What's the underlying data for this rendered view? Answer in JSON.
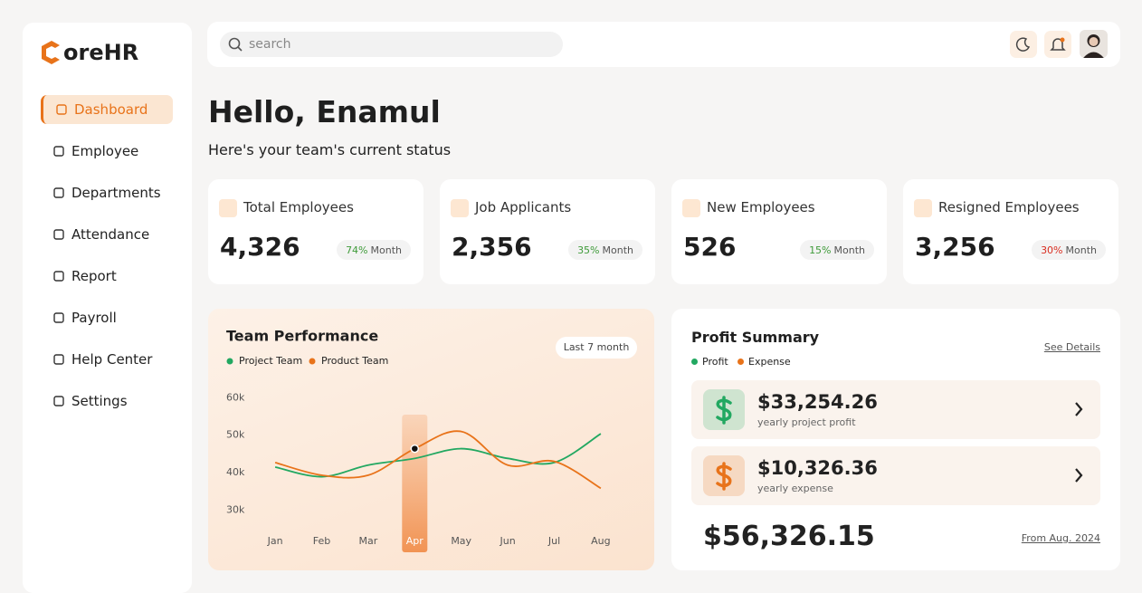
{
  "brand": "oreHR",
  "nav": [
    "Dashboard",
    "Employee",
    "Departments",
    "Attendance",
    "Report",
    "Payroll",
    "Help Center",
    "Settings"
  ],
  "search_placeholder": "search",
  "greeting": "Hello, Enamul",
  "subtitle": "Here's your team's current status",
  "stats": [
    {
      "label": "Total Employees",
      "value": "4,326",
      "change": "74%",
      "period": "Month",
      "color": "#3f9b3a"
    },
    {
      "label": "Job Applicants",
      "value": "2,356",
      "change": "35%",
      "period": "Month",
      "color": "#3f9b3a"
    },
    {
      "label": "New  Employees",
      "value": "526",
      "change": "15%",
      "period": "Month",
      "color": "#3f9b3a"
    },
    {
      "label": "Resigned Employees",
      "value": "3,256",
      "change": "30%",
      "period": "Month",
      "color": "#d92d20"
    }
  ],
  "chart_data": {
    "type": "line",
    "title": "Team Performance",
    "range_button": "Last 7 month",
    "categories": [
      "Jan",
      "Feb",
      "Mar",
      "Apr",
      "May",
      "Jun",
      "Jul",
      "Aug"
    ],
    "series": [
      {
        "name": "Project Team",
        "color": "#22a861",
        "values": [
          41500,
          38900,
          42000,
          43800,
          46400,
          43800,
          42700,
          50400
        ]
      },
      {
        "name": "Product Team",
        "color": "#e8731a",
        "values": [
          42700,
          39300,
          39300,
          46400,
          51000,
          42000,
          43000,
          35800
        ]
      }
    ],
    "ylim": [
      25000,
      63000
    ],
    "yticks": [
      {
        "value": 30000,
        "label": "30k"
      },
      {
        "value": 40000,
        "label": "40k"
      },
      {
        "value": 50000,
        "label": "50k"
      },
      {
        "value": 60000,
        "label": "60k"
      }
    ],
    "highlight": 3
  },
  "profit_summary": {
    "title": "Profit Summary",
    "link": "See Details",
    "legend": [
      {
        "name": "Profit",
        "color": "#22a861"
      },
      {
        "name": "Expense",
        "color": "#e8731a"
      }
    ],
    "items": [
      {
        "amount": "$33,254.26",
        "caption": "yearly project profit",
        "color": "#22a861"
      },
      {
        "amount": "$10,326.36",
        "caption": "yearly expense",
        "color": "#e8731a"
      }
    ],
    "total": "$56,326.15",
    "total_note": "From Aug. 2024"
  }
}
